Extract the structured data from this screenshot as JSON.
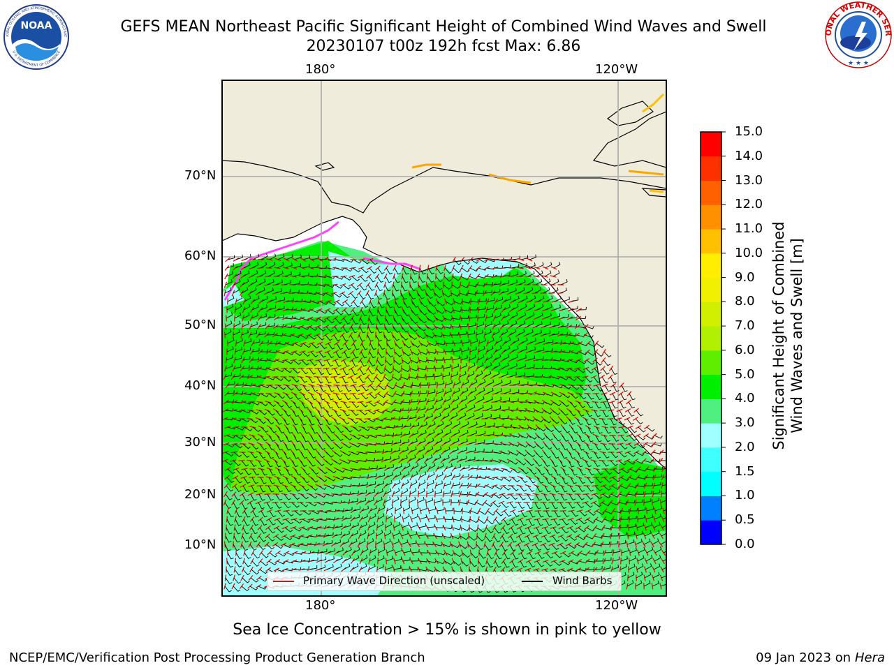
{
  "title_line1": "GEFS MEAN Northeast Pacific Significant Height of Combined Wind Waves and Swell",
  "title_line2": "20230107 t00z 192h fcst   Max: 6.86",
  "logos": {
    "noaa_text": "NOAA",
    "noaa_ring_top": "NATIONAL OCEANIC AND ATMOSPHERIC ADMINISTRATION",
    "noaa_ring_bottom": "U.S. DEPARTMENT OF COMMERCE",
    "nws_ring_top": "NATIONAL WEATHER SERVICE"
  },
  "map": {
    "lon_labels_top": [
      "180°",
      "120°W"
    ],
    "lon_labels_bottom": [
      "180°",
      "120°W"
    ],
    "lat_labels": [
      "70°N",
      "60°N",
      "50°N",
      "40°N",
      "30°N",
      "20°N",
      "10°N"
    ],
    "land_color": "#efecdc",
    "grid_color": "#b0b0b0",
    "wave_arrow_color": "#ff0000",
    "wind_barb_color": "#000000"
  },
  "legend": {
    "wave": "Primary Wave Direction (unscaled)",
    "barbs": "Wind Barbs"
  },
  "colorbar": {
    "title_line1": "Significant Height of Combined",
    "title_line2": "Wind Waves and Swell [m]",
    "ticks": [
      "0.0",
      "0.5",
      "1.0",
      "1.5",
      "2.0",
      "3.0",
      "4.0",
      "5.0",
      "6.0",
      "7.0",
      "8.0",
      "9.0",
      "10.0",
      "11.0",
      "12.0",
      "13.0",
      "14.0",
      "15.0"
    ],
    "colors": [
      "#0000ff",
      "#0080ff",
      "#00ffff",
      "#40ffff",
      "#a0ffff",
      "#50f080",
      "#00ee00",
      "#60ee00",
      "#b0f000",
      "#d0f000",
      "#f0f000",
      "#ffee00",
      "#ffc000",
      "#ff9000",
      "#ff6000",
      "#ff3000",
      "#ff0000"
    ]
  },
  "caption": "Sea Ice Concentration > 15% is shown in pink to yellow",
  "footer_left": "NCEP/EMC/Verification Post Processing Product Generation Branch",
  "footer_date": "09 Jan 2023 on ",
  "footer_host": "Hera"
}
